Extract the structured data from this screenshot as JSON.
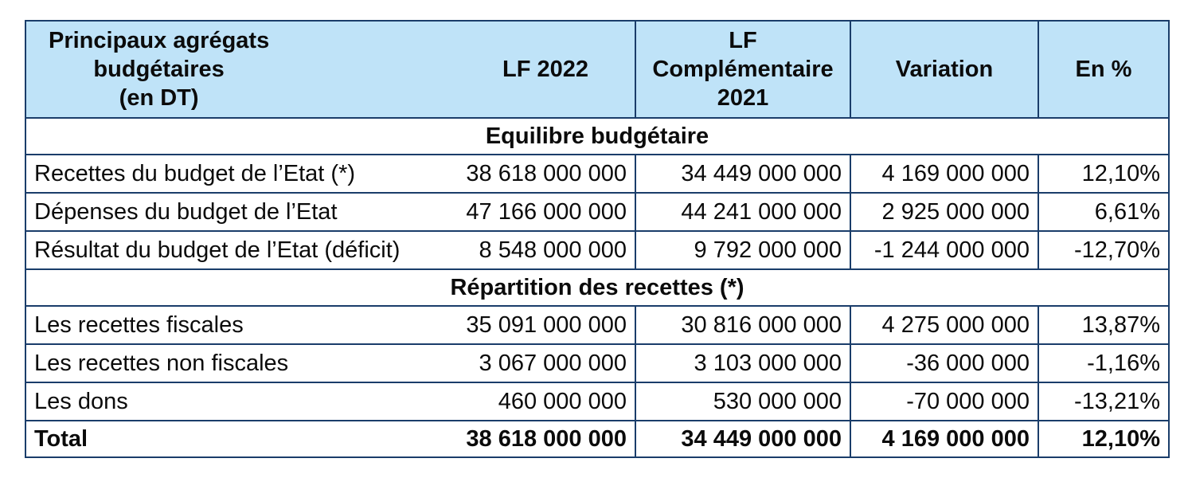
{
  "header": {
    "col1_line1": "Principaux agrégats",
    "col1_line2": "budgétaires",
    "col1_line3": "(en DT)",
    "col2": "LF 2022",
    "col3_line1": "LF",
    "col3_line2": "Complémentaire",
    "col3_line3": "2021",
    "col4": "Variation",
    "col5": "En %"
  },
  "sections": {
    "equilibre": "Equilibre budgétaire",
    "repartition": "Répartition des recettes (*)"
  },
  "rows_equilibre": [
    {
      "label": "Recettes du budget de l’Etat (*)",
      "lf2022": "38 618 000 000",
      "lfc2021": "34 449 000 000",
      "variation": "4 169 000 000",
      "pct": "12,10%"
    },
    {
      "label": "Dépenses du budget de l’Etat",
      "lf2022": "47 166 000 000",
      "lfc2021": "44 241 000 000",
      "variation": "2 925 000 000",
      "pct": "6,61%"
    },
    {
      "label": "Résultat du budget de l’Etat (déficit)",
      "lf2022": "8 548 000 000",
      "lfc2021": "9 792 000 000",
      "variation": "-1 244 000 000",
      "pct": "-12,70%"
    }
  ],
  "rows_repartition": [
    {
      "label": "Les recettes fiscales",
      "lf2022": "35 091 000 000",
      "lfc2021": "30 816 000 000",
      "variation": "4 275 000 000",
      "pct": "13,87%"
    },
    {
      "label": "Les recettes non fiscales",
      "lf2022": "3 067 000 000",
      "lfc2021": "3 103 000 000",
      "variation": "-36 000 000",
      "pct": "-1,16%"
    },
    {
      "label": "Les dons",
      "lf2022": "460 000 000",
      "lfc2021": "530 000 000",
      "variation": "-70 000 000",
      "pct": "-13,21%"
    }
  ],
  "total": {
    "label": "Total",
    "lf2022": "38 618 000 000",
    "lfc2021": "34 449 000 000",
    "variation": "4 169 000 000",
    "pct": "12,10%"
  }
}
